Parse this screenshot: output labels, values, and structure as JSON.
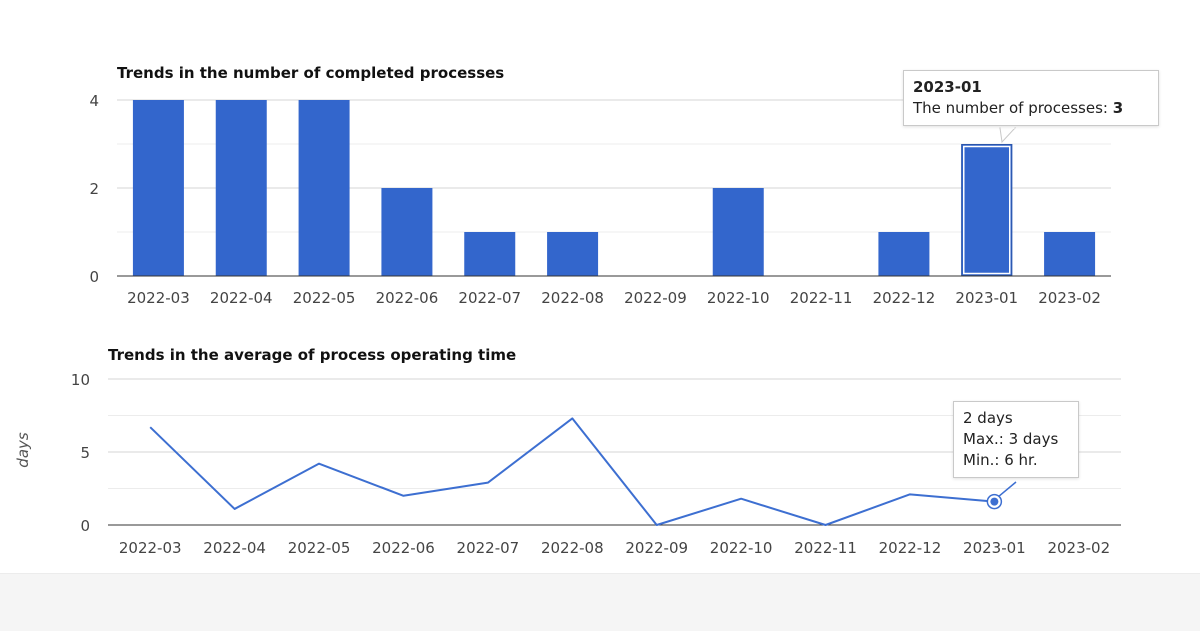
{
  "chart_data": [
    {
      "type": "bar",
      "title": "Trends in the number of completed processes",
      "categories": [
        "2022-03",
        "2022-04",
        "2022-05",
        "2022-06",
        "2022-07",
        "2022-08",
        "2022-09",
        "2022-10",
        "2022-11",
        "2022-12",
        "2023-01",
        "2023-02"
      ],
      "values": [
        4,
        4,
        4,
        2,
        1,
        1,
        0,
        2,
        0,
        1,
        3,
        1
      ],
      "ylim": [
        0,
        4
      ],
      "yticks": [
        "0",
        "2",
        "4"
      ],
      "ylabel": "",
      "xlabel": "",
      "color": "#3366cc",
      "highlight_index": 10,
      "grid": true
    },
    {
      "type": "line",
      "title": "Trends in the average of process operating time",
      "categories": [
        "2022-03",
        "2022-04",
        "2022-05",
        "2022-06",
        "2022-07",
        "2022-08",
        "2022-09",
        "2022-10",
        "2022-11",
        "2022-12",
        "2023-01",
        "2023-02"
      ],
      "values": [
        6.7,
        1.1,
        4.2,
        2.0,
        2.9,
        7.3,
        0,
        1.8,
        0,
        2.1,
        1.6,
        null
      ],
      "ylim": [
        0,
        10
      ],
      "yticks": [
        "0",
        "5",
        "10"
      ],
      "ylabel": "days",
      "xlabel": "",
      "color": "#3d6fd1",
      "highlight_index": 10,
      "grid": true
    }
  ],
  "tooltips": {
    "bar": {
      "title": "2023-01",
      "label": "The number of processes: ",
      "value": "3"
    },
    "line": {
      "line1": "2 days",
      "line2": "Max.: 3 days",
      "line3": "Min.: 6 hr."
    }
  }
}
